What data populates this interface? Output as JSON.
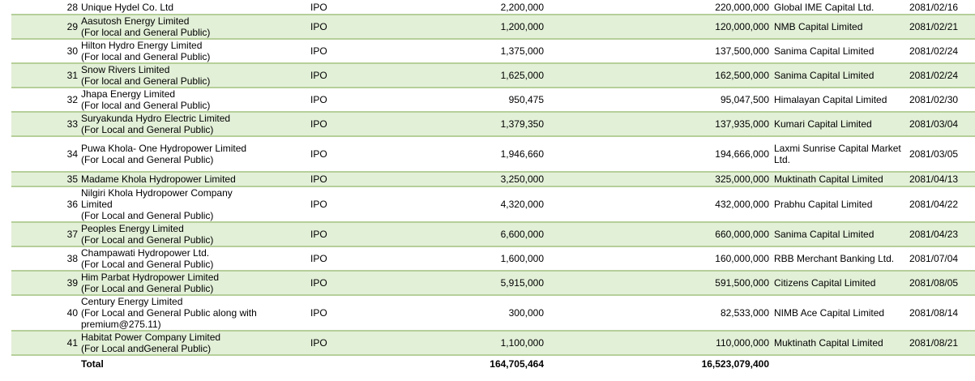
{
  "rows": [
    {
      "sn": "28",
      "name1": "Unique Hydel Co. Ltd",
      "name2": "",
      "name3": "",
      "type": "IPO",
      "units": "2,200,000",
      "amount": "220,000,000",
      "manager": "Global IME Capital Ltd.",
      "date": "2081/02/16"
    },
    {
      "sn": "29",
      "name1": "Aasutosh Energy Limited",
      "name2": "(For local and General Public)",
      "name3": "",
      "type": "IPO",
      "units": "1,200,000",
      "amount": "120,000,000",
      "manager": "NMB Capital Limited",
      "date": "2081/02/21"
    },
    {
      "sn": "30",
      "name1": "Hilton Hydro Energy Limited",
      "name2": "(For local and General Public)",
      "name3": "",
      "type": "IPO",
      "units": "1,375,000",
      "amount": "137,500,000",
      "manager": "Sanima Capital Limited",
      "date": "2081/02/24"
    },
    {
      "sn": "31",
      "name1": "Snow Rivers Limited",
      "name2": "(For local and General Public)",
      "name3": "",
      "type": "IPO",
      "units": "1,625,000",
      "amount": "162,500,000",
      "manager": "Sanima Capital Limited",
      "date": "2081/02/24"
    },
    {
      "sn": "32",
      "name1": "Jhapa Energy Limited",
      "name2": "(For local and General Public)",
      "name3": "",
      "type": "IPO",
      "units": "950,475",
      "amount": "95,047,500",
      "manager": "Himalayan Capital Limited",
      "date": "2081/02/30"
    },
    {
      "sn": "33",
      "name1": "Suryakunda Hydro Electric Limited",
      "name2": "(For Local and General Public)",
      "name3": "",
      "type": "IPO",
      "units": "1,379,350",
      "amount": "137,935,000",
      "manager": "Kumari Capital Limited",
      "date": "2081/03/04"
    },
    {
      "sn": "34",
      "name1": "Puwa Khola- One Hydropower Limited",
      "name2": "(For Local and General Public)",
      "name3": "",
      "type": "IPO",
      "units": "1,946,660",
      "amount": "194,666,000",
      "manager": "Laxmi Sunrise Capital Market Ltd.",
      "date": "2081/03/05"
    },
    {
      "sn": "35",
      "name1": "Madame Khola Hydropower Limited",
      "name2": "",
      "name3": "",
      "type": "IPO",
      "units": "3,250,000",
      "amount": "325,000,000",
      "manager": "Muktinath Capital Limited",
      "date": "2081/04/13"
    },
    {
      "sn": "36",
      "name1": "Nilgiri Khola Hydropower Company",
      "name2": "Limited",
      "name3": "(For Local and General Public)",
      "type": "IPO",
      "units": "4,320,000",
      "amount": "432,000,000",
      "manager": "Prabhu Capital Limited",
      "date": "2081/04/22"
    },
    {
      "sn": "37",
      "name1": "Peoples Energy Limited",
      "name2": "(For Local and General Public)",
      "name3": "",
      "type": "IPO",
      "units": "6,600,000",
      "amount": "660,000,000",
      "manager": "Sanima Capital Limited",
      "date": "2081/04/23"
    },
    {
      "sn": "38",
      "name1": "Champawati Hydropower Ltd.",
      "name2": "(For Local and General Public)",
      "name3": "",
      "type": "IPO",
      "units": "1,600,000",
      "amount": "160,000,000",
      "manager": "RBB Merchant Banking Ltd.",
      "date": "2081/07/04"
    },
    {
      "sn": "39",
      "name1": "Him Parbat Hydropower Limited",
      "name2": "(For Local and General Public)",
      "name3": "",
      "type": "IPO",
      "units": "5,915,000",
      "amount": "591,500,000",
      "manager": "Citizens Capital Limited",
      "date": "2081/08/05"
    },
    {
      "sn": "40",
      "name1": "Century Energy Limited",
      "name2": "(For Local and General Public along with",
      "name3": "premium@275.11)",
      "type": "IPO",
      "units": "300,000",
      "amount": "82,533,000",
      "manager": "NIMB Ace Capital Limited",
      "date": "2081/08/14"
    },
    {
      "sn": "41",
      "name1": "Habitat Power Company Limited",
      "name2": "(For Local andGeneral Public)",
      "name3": "",
      "type": "IPO",
      "units": "1,100,000",
      "amount": "110,000,000",
      "manager": "Muktinath Capital Limited",
      "date": "2081/08/21"
    }
  ],
  "total": {
    "label": "Total",
    "units": "164,705,464",
    "amount": "16,523,079,400"
  }
}
